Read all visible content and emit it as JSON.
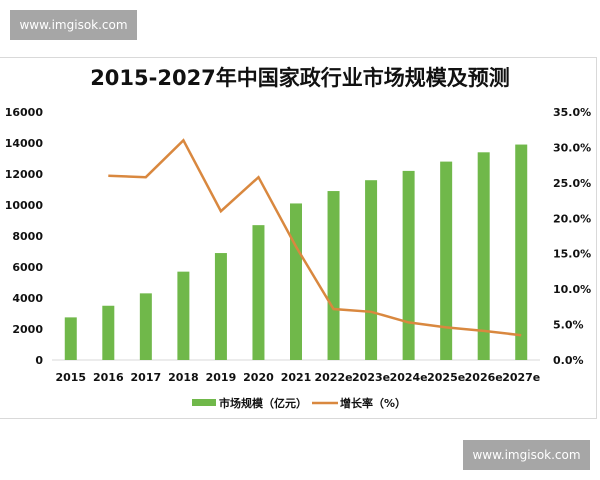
{
  "watermarks": {
    "top": "www.imgisok.com",
    "bottom": "www.imgisok.com"
  },
  "colors": {
    "bar": "#70b84a",
    "line": "#d9883f",
    "axis": "#d9d9d9",
    "text": "#111111"
  },
  "chart_data": {
    "type": "bar+line",
    "title": "2015-2027年中国家政行业市场规模及预测",
    "xlabel": "",
    "ylabel": "",
    "y2label": "",
    "categories": [
      "2015",
      "2016",
      "2017",
      "2018",
      "2019",
      "2020",
      "2021",
      "2022e",
      "2023e",
      "2024e",
      "2025e",
      "2026e",
      "2027e"
    ],
    "series": [
      {
        "name": "市场规模（亿元）",
        "type": "bar",
        "axis": "left",
        "values": [
          2750,
          3500,
          4300,
          5700,
          6900,
          8700,
          10100,
          10900,
          11600,
          12200,
          12800,
          13400,
          13900
        ]
      },
      {
        "name": "增长率（%）",
        "type": "line",
        "axis": "right",
        "values": [
          null,
          26.0,
          25.8,
          31.0,
          21.0,
          25.8,
          16.0,
          7.2,
          6.8,
          5.3,
          4.6,
          4.1,
          3.5
        ]
      }
    ],
    "ylim": [
      0,
      16000
    ],
    "y_ticks": [
      "0",
      "2000",
      "4000",
      "6000",
      "8000",
      "10000",
      "12000",
      "14000",
      "16000"
    ],
    "y2lim": [
      0,
      35
    ],
    "y2_ticks": [
      "0.0%",
      "5.0%",
      "10.0%",
      "15.0%",
      "20.0%",
      "25.0%",
      "30.0%",
      "35.0%"
    ],
    "grid": false,
    "legend_position": "bottom",
    "legend": [
      "市场规模（亿元）",
      "增长率（%）"
    ]
  }
}
